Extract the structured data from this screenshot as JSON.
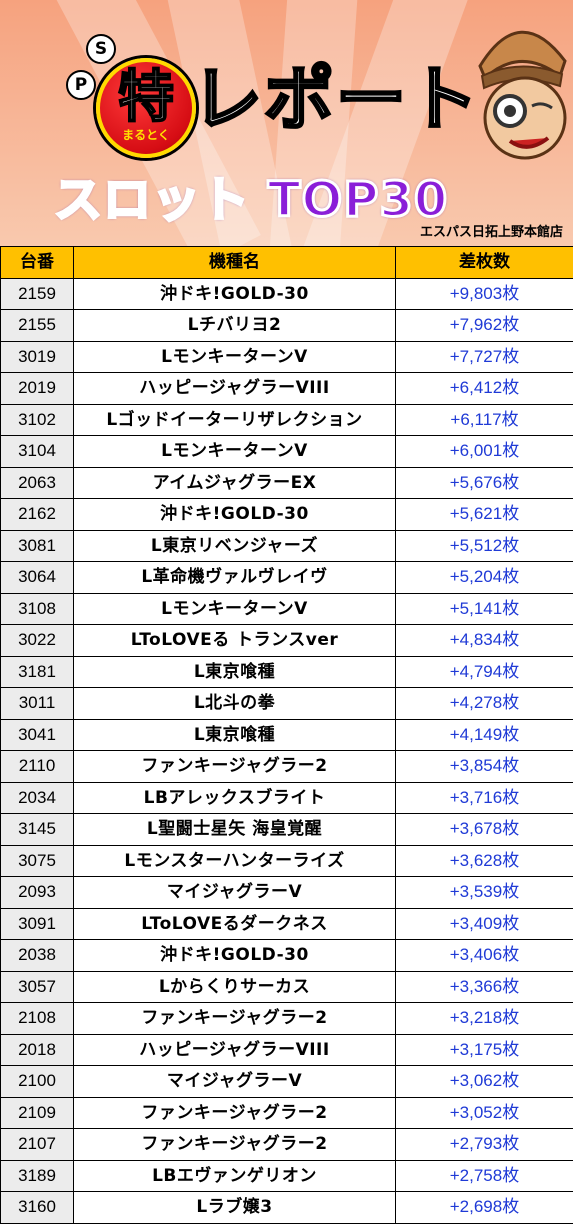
{
  "banner": {
    "badge_main": "特",
    "badge_sub": "まるとく",
    "badge_letter_s": "S",
    "badge_letter_p": "P",
    "title": "レポート",
    "subtitle": "スロット TOP30",
    "store": "エスパス日拓上野本館店",
    "colors": {
      "subtitle": "#8a1ed8",
      "badge": "#d60d14",
      "header": "#ffc000",
      "diff": "#1f3ad6"
    }
  },
  "table": {
    "headers": {
      "num": "台番",
      "name": "機種名",
      "diff": "差枚数"
    },
    "rows": [
      {
        "num": "2159",
        "name": "沖ドキ!GOLD-30",
        "diff": "+9,803枚"
      },
      {
        "num": "2155",
        "name": "Lチバリヨ2",
        "diff": "+7,962枚"
      },
      {
        "num": "3019",
        "name": "LモンキーターンV",
        "diff": "+7,727枚"
      },
      {
        "num": "2019",
        "name": "ハッピージャグラーVIII",
        "diff": "+6,412枚"
      },
      {
        "num": "3102",
        "name": "Lゴッドイーターリザレクション",
        "diff": "+6,117枚"
      },
      {
        "num": "3104",
        "name": "LモンキーターンV",
        "diff": "+6,001枚"
      },
      {
        "num": "2063",
        "name": "アイムジャグラーEX",
        "diff": "+5,676枚"
      },
      {
        "num": "2162",
        "name": "沖ドキ!GOLD-30",
        "diff": "+5,621枚"
      },
      {
        "num": "3081",
        "name": "L東京リベンジャーズ",
        "diff": "+5,512枚"
      },
      {
        "num": "3064",
        "name": "L革命機ヴァルヴレイヴ",
        "diff": "+5,204枚"
      },
      {
        "num": "3108",
        "name": "LモンキーターンV",
        "diff": "+5,141枚"
      },
      {
        "num": "3022",
        "name": "LToLOVEる トランスver",
        "diff": "+4,834枚"
      },
      {
        "num": "3181",
        "name": "L東京喰種",
        "diff": "+4,794枚"
      },
      {
        "num": "3011",
        "name": "L北斗の拳",
        "diff": "+4,278枚"
      },
      {
        "num": "3041",
        "name": "L東京喰種",
        "diff": "+4,149枚"
      },
      {
        "num": "2110",
        "name": "ファンキージャグラー2",
        "diff": "+3,854枚"
      },
      {
        "num": "2034",
        "name": "LBアレックスブライト",
        "diff": "+3,716枚"
      },
      {
        "num": "3145",
        "name": "L聖闘士星矢 海皇覚醒",
        "diff": "+3,678枚"
      },
      {
        "num": "3075",
        "name": "Lモンスターハンターライズ",
        "diff": "+3,628枚"
      },
      {
        "num": "2093",
        "name": "マイジャグラーV",
        "diff": "+3,539枚"
      },
      {
        "num": "3091",
        "name": "LToLOVEるダークネス",
        "diff": "+3,409枚"
      },
      {
        "num": "2038",
        "name": "沖ドキ!GOLD-30",
        "diff": "+3,406枚"
      },
      {
        "num": "3057",
        "name": "Lからくりサーカス",
        "diff": "+3,366枚"
      },
      {
        "num": "2108",
        "name": "ファンキージャグラー2",
        "diff": "+3,218枚"
      },
      {
        "num": "2018",
        "name": "ハッピージャグラーVIII",
        "diff": "+3,175枚"
      },
      {
        "num": "2100",
        "name": "マイジャグラーV",
        "diff": "+3,062枚"
      },
      {
        "num": "2109",
        "name": "ファンキージャグラー2",
        "diff": "+3,052枚"
      },
      {
        "num": "2107",
        "name": "ファンキージャグラー2",
        "diff": "+2,793枚"
      },
      {
        "num": "3189",
        "name": "LBエヴァンゲリオン",
        "diff": "+2,758枚"
      },
      {
        "num": "3160",
        "name": "Lラブ嬢3",
        "diff": "+2,698枚"
      }
    ]
  }
}
